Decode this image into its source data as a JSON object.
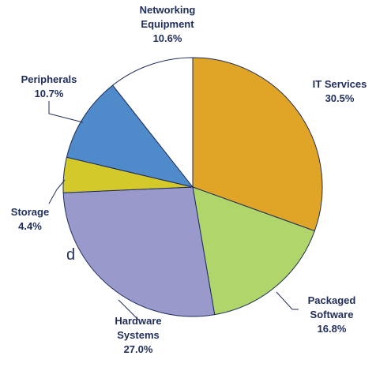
{
  "chart_data": {
    "type": "pie",
    "categories": [
      "IT Services",
      "Packaged Software",
      "Hardware Systems",
      "Storage",
      "Peripherals",
      "Networking Equipment"
    ],
    "values": [
      30.5,
      16.8,
      27.0,
      4.4,
      10.7,
      10.6
    ],
    "value_labels": [
      "30.5%",
      "16.8%",
      "27.0%",
      "4.4%",
      "10.7%",
      "10.6%"
    ],
    "colors": [
      "#e0a526",
      "#b0d56a",
      "#9999cc",
      "#d4c92a",
      "#4f8acb",
      "#ffffff"
    ]
  },
  "fragment": "d"
}
